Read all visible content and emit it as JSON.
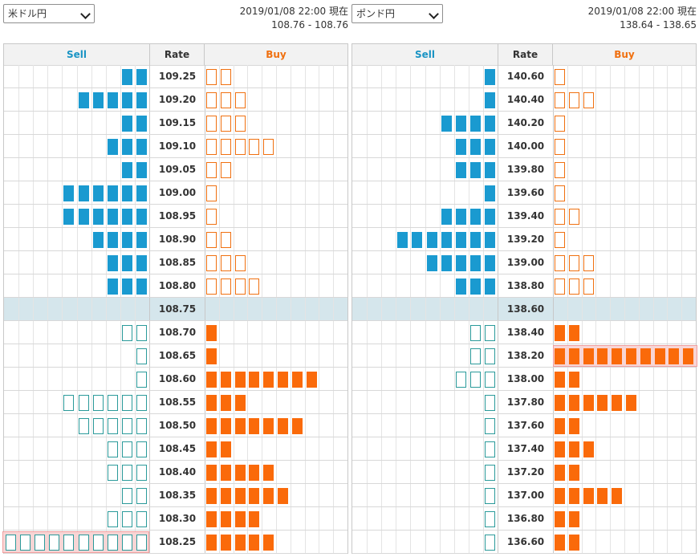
{
  "panels": [
    {
      "pair": "米ドル円",
      "timestamp": "2019/01/08 22:00 現在",
      "range": "108.76 - 108.76",
      "headers": {
        "sell": "Sell",
        "rate": "Rate",
        "buy": "Buy"
      },
      "current_rate": "108.75",
      "rows": [
        {
          "rate": "109.25",
          "sell": 2,
          "buy": 2,
          "type": "order"
        },
        {
          "rate": "109.20",
          "sell": 5,
          "buy": 3,
          "type": "order"
        },
        {
          "rate": "109.15",
          "sell": 2,
          "buy": 3,
          "type": "order"
        },
        {
          "rate": "109.10",
          "sell": 3,
          "buy": 5,
          "type": "order"
        },
        {
          "rate": "109.05",
          "sell": 2,
          "buy": 2,
          "type": "order"
        },
        {
          "rate": "109.00",
          "sell": 6,
          "buy": 1,
          "type": "order"
        },
        {
          "rate": "108.95",
          "sell": 6,
          "buy": 1,
          "type": "order"
        },
        {
          "rate": "108.90",
          "sell": 4,
          "buy": 2,
          "type": "order"
        },
        {
          "rate": "108.85",
          "sell": 3,
          "buy": 3,
          "type": "order"
        },
        {
          "rate": "108.80",
          "sell": 3,
          "buy": 4,
          "type": "order"
        },
        {
          "rate": "108.75",
          "sell": 0,
          "buy": 0,
          "type": "current"
        },
        {
          "rate": "108.70",
          "sell": 2,
          "buy": 1,
          "type": "position"
        },
        {
          "rate": "108.65",
          "sell": 1,
          "buy": 1,
          "type": "position"
        },
        {
          "rate": "108.60",
          "sell": 1,
          "buy": 8,
          "type": "position"
        },
        {
          "rate": "108.55",
          "sell": 6,
          "buy": 3,
          "type": "position"
        },
        {
          "rate": "108.50",
          "sell": 5,
          "buy": 7,
          "type": "position"
        },
        {
          "rate": "108.45",
          "sell": 3,
          "buy": 2,
          "type": "position"
        },
        {
          "rate": "108.40",
          "sell": 3,
          "buy": 5,
          "type": "position"
        },
        {
          "rate": "108.35",
          "sell": 2,
          "buy": 6,
          "type": "position"
        },
        {
          "rate": "108.30",
          "sell": 3,
          "buy": 4,
          "type": "position"
        },
        {
          "rate": "108.25",
          "sell": 10,
          "buy": 5,
          "type": "position",
          "sell_highlight": true
        }
      ]
    },
    {
      "pair": "ポンド円",
      "timestamp": "2019/01/08 22:00 現在",
      "range": "138.64 - 138.65",
      "headers": {
        "sell": "Sell",
        "rate": "Rate",
        "buy": "Buy"
      },
      "current_rate": "138.60",
      "rows": [
        {
          "rate": "140.60",
          "sell": 1,
          "buy": 1,
          "type": "order"
        },
        {
          "rate": "140.40",
          "sell": 1,
          "buy": 3,
          "type": "order"
        },
        {
          "rate": "140.20",
          "sell": 4,
          "buy": 1,
          "type": "order"
        },
        {
          "rate": "140.00",
          "sell": 3,
          "buy": 1,
          "type": "order"
        },
        {
          "rate": "139.80",
          "sell": 3,
          "buy": 1,
          "type": "order"
        },
        {
          "rate": "139.60",
          "sell": 1,
          "buy": 1,
          "type": "order"
        },
        {
          "rate": "139.40",
          "sell": 4,
          "buy": 2,
          "type": "order"
        },
        {
          "rate": "139.20",
          "sell": 7,
          "buy": 1,
          "type": "order"
        },
        {
          "rate": "139.00",
          "sell": 5,
          "buy": 3,
          "type": "order"
        },
        {
          "rate": "138.80",
          "sell": 3,
          "buy": 3,
          "type": "order"
        },
        {
          "rate": "138.60",
          "sell": 0,
          "buy": 0,
          "type": "current"
        },
        {
          "rate": "138.40",
          "sell": 2,
          "buy": 2,
          "type": "position"
        },
        {
          "rate": "138.20",
          "sell": 2,
          "buy": 10,
          "type": "position",
          "buy_highlight": true
        },
        {
          "rate": "138.00",
          "sell": 3,
          "buy": 2,
          "type": "position"
        },
        {
          "rate": "137.80",
          "sell": 1,
          "buy": 6,
          "type": "position"
        },
        {
          "rate": "137.60",
          "sell": 1,
          "buy": 2,
          "type": "position"
        },
        {
          "rate": "137.40",
          "sell": 1,
          "buy": 3,
          "type": "position"
        },
        {
          "rate": "137.20",
          "sell": 1,
          "buy": 2,
          "type": "position"
        },
        {
          "rate": "137.00",
          "sell": 1,
          "buy": 5,
          "type": "position"
        },
        {
          "rate": "136.80",
          "sell": 1,
          "buy": 2,
          "type": "position"
        },
        {
          "rate": "136.60",
          "sell": 1,
          "buy": 2,
          "type": "position"
        }
      ]
    }
  ],
  "colors": {
    "sell_order": "#1a9ad0",
    "sell_position": "#2a9a9a",
    "buy_order": "#f07010",
    "buy_position": "#fa6a0a",
    "current_row": "#d5e6ec",
    "highlight": "#f8d5d5"
  },
  "icons": {
    "dropdown": "chevron-down-icon"
  }
}
